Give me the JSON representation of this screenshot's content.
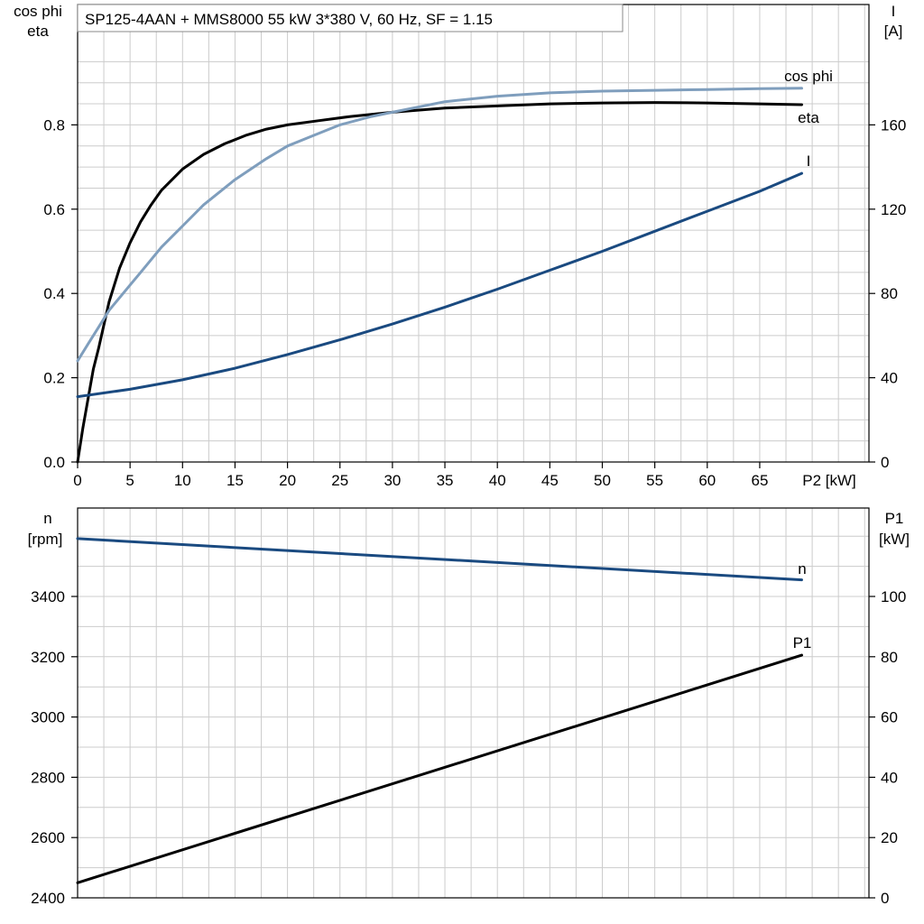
{
  "chart_data": [
    {
      "type": "line",
      "title": "SP125-4AAN + MMS8000   55 kW   3*380 V, 60 Hz, SF = 1.15",
      "xlabel": "P2 [kW]",
      "ylabel_left": [
        "cos phi",
        "eta"
      ],
      "ylabel_right": [
        "I",
        "[A]"
      ],
      "xlim": [
        0,
        75
      ],
      "x_ticks": [
        "0",
        "5",
        "10",
        "15",
        "20",
        "25",
        "30",
        "35",
        "40",
        "45",
        "50",
        "55",
        "60",
        "65"
      ],
      "ylim_left": [
        0,
        1.0
      ],
      "y_ticks_left": [
        "0.0",
        "0.2",
        "0.4",
        "0.6",
        "0.8"
      ],
      "ylim_right": [
        0,
        200
      ],
      "y_ticks_right": [
        "0",
        "40",
        "80",
        "120",
        "160"
      ],
      "grid": true,
      "series": [
        {
          "name": "eta",
          "axis": "left",
          "color": "#000000",
          "x": [
            0,
            0.5,
            1,
            1.5,
            2,
            3,
            4,
            5,
            6,
            7,
            8,
            10,
            12,
            14,
            16,
            18,
            20,
            23,
            26,
            30,
            35,
            40,
            45,
            50,
            55,
            60,
            65,
            69
          ],
          "y": [
            0.0,
            0.08,
            0.15,
            0.22,
            0.27,
            0.38,
            0.46,
            0.52,
            0.57,
            0.61,
            0.645,
            0.695,
            0.73,
            0.755,
            0.775,
            0.79,
            0.8,
            0.81,
            0.82,
            0.83,
            0.84,
            0.845,
            0.85,
            0.852,
            0.853,
            0.852,
            0.85,
            0.848
          ]
        },
        {
          "name": "cos phi",
          "axis": "left",
          "color": "#7f9ebd",
          "x": [
            0,
            1,
            2,
            3,
            4,
            5,
            6,
            8,
            10,
            12,
            15,
            18,
            20,
            22,
            25,
            28,
            30,
            35,
            40,
            45,
            50,
            55,
            60,
            65,
            69
          ],
          "y": [
            0.24,
            0.28,
            0.32,
            0.36,
            0.39,
            0.42,
            0.45,
            0.51,
            0.56,
            0.61,
            0.67,
            0.72,
            0.75,
            0.77,
            0.8,
            0.82,
            0.83,
            0.855,
            0.868,
            0.876,
            0.88,
            0.882,
            0.884,
            0.886,
            0.887
          ]
        },
        {
          "name": "I",
          "axis": "right",
          "color": "#1a4a80",
          "x": [
            0,
            5,
            10,
            15,
            20,
            25,
            30,
            35,
            40,
            45,
            50,
            55,
            60,
            65,
            69
          ],
          "y": [
            31,
            34.5,
            39,
            44.5,
            51,
            58,
            65.5,
            73.5,
            82,
            91,
            100,
            109.5,
            119,
            128.5,
            137
          ]
        }
      ]
    },
    {
      "type": "line",
      "xlim": [
        0,
        75
      ],
      "ylabel_left": [
        "n",
        "[rpm]"
      ],
      "ylabel_right": [
        "P1",
        "[kW]"
      ],
      "ylim_left": [
        2400,
        3600
      ],
      "y_ticks_left": [
        "2400",
        "2600",
        "2800",
        "3000",
        "3200",
        "3400"
      ],
      "ylim_right": [
        0,
        120
      ],
      "y_ticks_right": [
        "0",
        "20",
        "40",
        "60",
        "80",
        "100"
      ],
      "grid": true,
      "series": [
        {
          "name": "n",
          "axis": "left",
          "color": "#1a4a80",
          "x": [
            0,
            69
          ],
          "y": [
            3592,
            3455
          ]
        },
        {
          "name": "P1",
          "axis": "right",
          "color": "#000000",
          "x": [
            0,
            69
          ],
          "y": [
            5,
            80.5
          ]
        }
      ]
    }
  ]
}
